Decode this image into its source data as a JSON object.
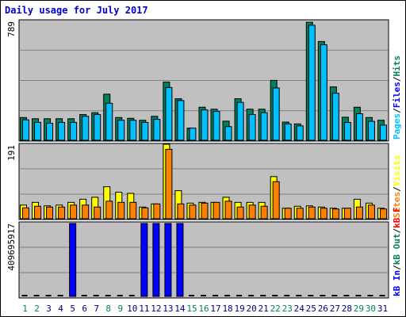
{
  "colors": {
    "background": "#ffffff",
    "panel": "#c0c0c0",
    "title": "#0000cc",
    "axis_label": "#000000",
    "hits": "#00805c",
    "files": "#0000ff",
    "pages": "#00c0ff",
    "visits": "#ffff00",
    "sites": "#ff8000",
    "kb_in": "#0000ff",
    "kb_out": "#00805c",
    "kb_f": "#ff0000",
    "day_weekend": "#00805c",
    "day_weekday": "#000080"
  },
  "chart_data": {
    "type": "bar",
    "title": "Daily usage for July 2017",
    "categories": [
      "1",
      "2",
      "3",
      "4",
      "5",
      "6",
      "7",
      "8",
      "9",
      "10",
      "11",
      "12",
      "13",
      "14",
      "15",
      "16",
      "17",
      "18",
      "19",
      "20",
      "21",
      "22",
      "23",
      "24",
      "25",
      "26",
      "27",
      "28",
      "29",
      "30",
      "31"
    ],
    "weekend_days": [
      "1",
      "2",
      "8",
      "9",
      "15",
      "16",
      "22",
      "23",
      "29",
      "30"
    ],
    "panels": [
      {
        "name": "hits",
        "ymax_label": "789",
        "ymax": 789,
        "legend": [
          {
            "text": "Hits",
            "color": "#00805c"
          },
          {
            "text": "/",
            "color": "#000000"
          },
          {
            "text": "Files",
            "color": "#0000ff"
          },
          {
            "text": "/",
            "color": "#000000"
          },
          {
            "text": "Pages",
            "color": "#00c0ff"
          }
        ],
        "series": [
          {
            "name": "Hits",
            "values": [
              150,
              142,
              142,
              142,
              142,
              170,
              182,
              304,
              150,
              145,
              132,
              158,
              384,
              274,
              80,
              218,
              205,
              126,
              274,
              205,
              205,
              395,
              120,
              108,
              778,
              651,
              352,
              152,
              218,
              150,
              132
            ]
          },
          {
            "name": "Pages",
            "values": [
              135,
              118,
              112,
              118,
              118,
              158,
              170,
              244,
              132,
              132,
              118,
              138,
              348,
              262,
              80,
              200,
              190,
              90,
              250,
              170,
              182,
              345,
              108,
              95,
              758,
              630,
              310,
              118,
              175,
              125,
              100
            ]
          }
        ]
      },
      {
        "name": "visits",
        "ymax_label": "191",
        "ymax": 191,
        "legend": [
          {
            "text": "Visits",
            "color": "#ffff00"
          },
          {
            "text": "/",
            "color": "#000000"
          },
          {
            "text": "Sites",
            "color": "#ff8000"
          }
        ],
        "series": [
          {
            "name": "Visits",
            "values": [
              35,
              42,
              33,
              35,
              42,
              50,
              55,
              82,
              68,
              65,
              30,
              38,
              191,
              72,
              40,
              42,
              42,
              55,
              42,
              42,
              42,
              108,
              27,
              32,
              33,
              30,
              27,
              27,
              50,
              40,
              27
            ]
          },
          {
            "name": "Sites",
            "values": [
              28,
              32,
              30,
              30,
              35,
              35,
              30,
              45,
              42,
              42,
              28,
              38,
              178,
              38,
              35,
              40,
              42,
              45,
              30,
              35,
              32,
              95,
              27,
              27,
              30,
              27,
              25,
              27,
              30,
              35,
              25
            ]
          }
        ]
      },
      {
        "name": "kbytes",
        "ymax_label": "409695917",
        "ymax": 409695917,
        "legend": [
          {
            "text": "kB F",
            "color": "#ff0000"
          },
          {
            "text": "/",
            "color": "#000000"
          },
          {
            "text": "kB Out",
            "color": "#00805c"
          },
          {
            "text": "/",
            "color": "#000000"
          },
          {
            "text": "kB In",
            "color": "#0000ff"
          }
        ],
        "series": [
          {
            "name": "kB In",
            "values": [
              0,
              0,
              0,
              0,
              409695917,
              0,
              0,
              0,
              0,
              0,
              409695917,
              409695917,
              409695917,
              409695917,
              0,
              0,
              0,
              0,
              0,
              0,
              0,
              0,
              0,
              0,
              0,
              0,
              0,
              0,
              0,
              0,
              0
            ]
          }
        ]
      }
    ]
  }
}
